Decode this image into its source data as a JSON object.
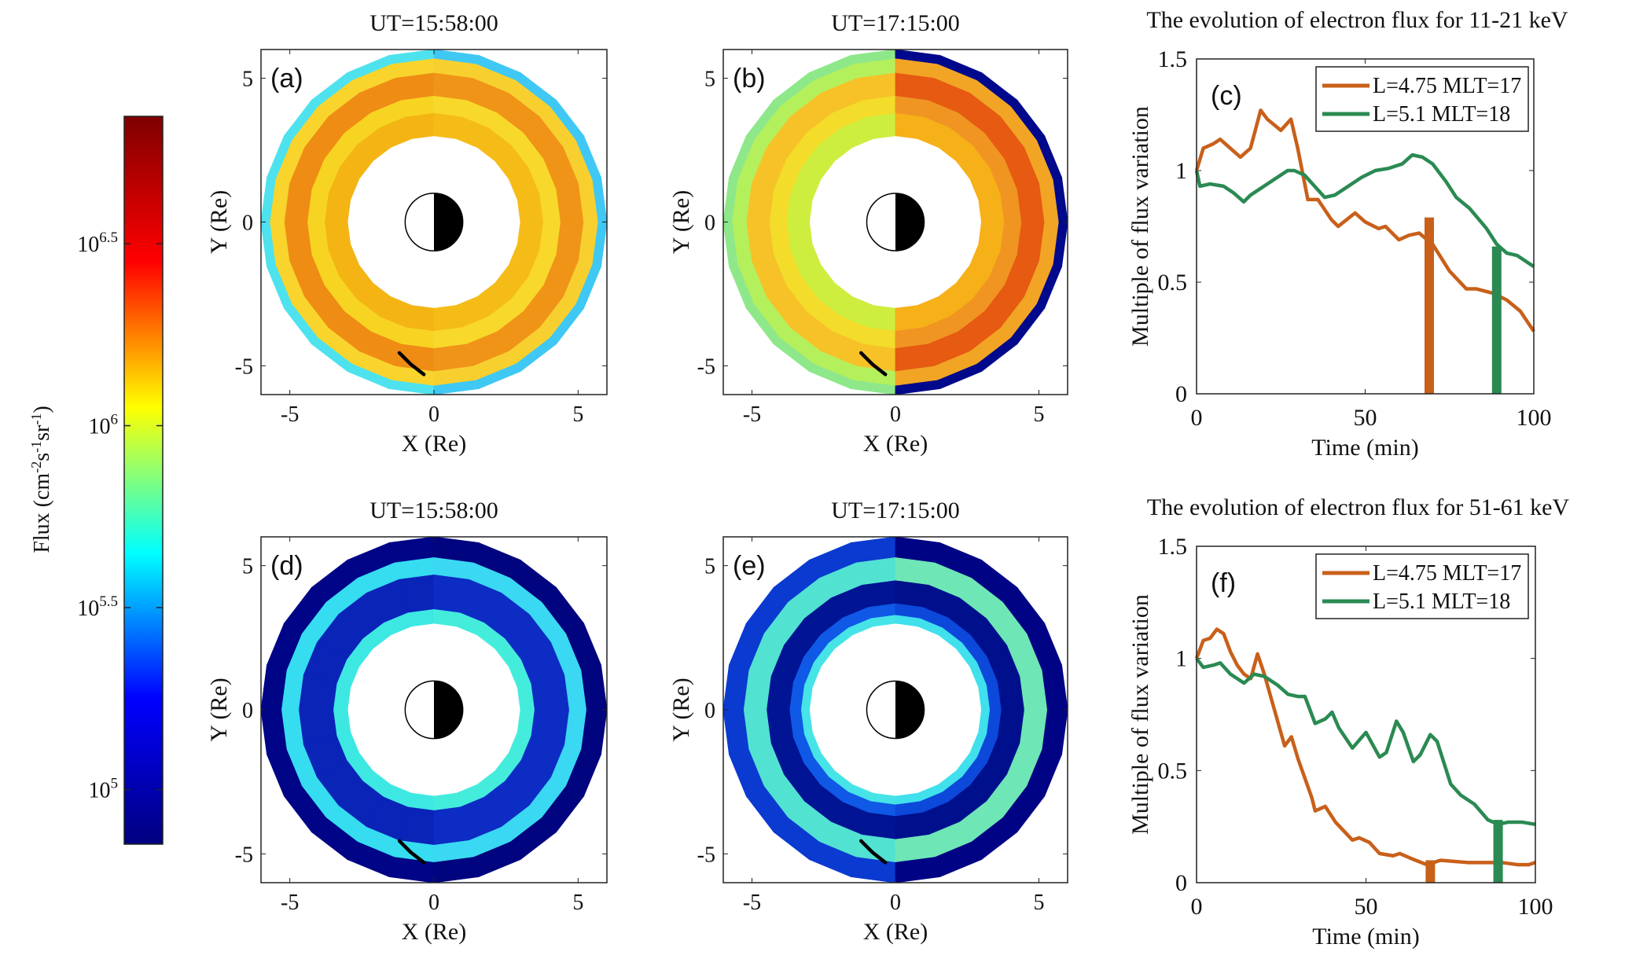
{
  "chart_data": [
    {
      "id": "a",
      "type": "heatmap",
      "panel_label": "(a)",
      "title": "UT=15:58:00",
      "xlabel": "X (Re)",
      "ylabel": "Y (Re)",
      "xlim": [
        -6,
        6
      ],
      "ylim": [
        -6,
        6
      ],
      "xticks": [
        "-5",
        "0",
        "5"
      ],
      "yticks": [
        "-5",
        "0",
        "5"
      ],
      "bands_west": [
        {
          "r": [
            3.0,
            3.8
          ],
          "color": "#f3b414"
        },
        {
          "r": [
            3.8,
            4.4
          ],
          "color": "#f7d422"
        },
        {
          "r": [
            4.4,
            5.2
          ],
          "color": "#ef8c14"
        },
        {
          "r": [
            5.2,
            5.7
          ],
          "color": "#f8d42c"
        },
        {
          "r": [
            5.7,
            6.0
          ],
          "color": "#4ee2ee"
        }
      ],
      "bands_east": [
        {
          "r": [
            3.0,
            3.8
          ],
          "color": "#f5bc18"
        },
        {
          "r": [
            3.8,
            4.4
          ],
          "color": "#f8d82a"
        },
        {
          "r": [
            4.4,
            5.2
          ],
          "color": "#f09418"
        },
        {
          "r": [
            5.2,
            5.7
          ],
          "color": "#f7d030"
        },
        {
          "r": [
            5.7,
            6.0
          ],
          "color": "#3fc8f4"
        }
      ],
      "track": [
        [
          -1.2,
          -4.55
        ],
        [
          -0.8,
          -4.95
        ],
        [
          -0.35,
          -5.3
        ]
      ]
    },
    {
      "id": "b",
      "type": "heatmap",
      "panel_label": "(b)",
      "title": "UT=17:15:00",
      "xlabel": "X (Re)",
      "ylabel": "Y (Re)",
      "xlim": [
        -6,
        6
      ],
      "ylim": [
        -6,
        6
      ],
      "xticks": [
        "-5",
        "0",
        "5"
      ],
      "yticks": [
        "-5",
        "0",
        "5"
      ],
      "bands_west": [
        {
          "r": [
            3.0,
            3.8
          ],
          "color": "#cdee3e"
        },
        {
          "r": [
            3.8,
            4.4
          ],
          "color": "#f4dc2a"
        },
        {
          "r": [
            4.4,
            5.2
          ],
          "color": "#f6c228"
        },
        {
          "r": [
            5.2,
            5.7
          ],
          "color": "#b4f05c"
        },
        {
          "r": [
            5.7,
            6.0
          ],
          "color": "#8ee88a"
        }
      ],
      "bands_east": [
        {
          "r": [
            3.0,
            3.8
          ],
          "color": "#f6b018"
        },
        {
          "r": [
            3.8,
            4.4
          ],
          "color": "#f09422"
        },
        {
          "r": [
            4.4,
            5.2
          ],
          "color": "#e65a12"
        },
        {
          "r": [
            5.2,
            5.7
          ],
          "color": "#f2a424"
        },
        {
          "r": [
            5.7,
            6.0
          ],
          "color": "#00088c"
        }
      ],
      "track": [
        [
          -1.2,
          -4.55
        ],
        [
          -0.8,
          -4.95
        ],
        [
          -0.35,
          -5.3
        ]
      ]
    },
    {
      "id": "c",
      "type": "line",
      "panel_label": "(c)",
      "title": "The evolution of electron flux for 11-21 keV",
      "xlabel": "Time (min)",
      "ylabel": "Multiple of flux variation",
      "xlim": [
        0,
        100
      ],
      "ylim": [
        0,
        1.5
      ],
      "xticks": [
        "0",
        "50",
        "100"
      ],
      "yticks": [
        "0",
        "0.5",
        "1",
        "1.5"
      ],
      "legend": "top-right",
      "series": [
        {
          "name": "L=4.75 MLT=17",
          "color": "#c8601a",
          "x": [
            0,
            2,
            5,
            7,
            10,
            13,
            16,
            19,
            21,
            25,
            28,
            30,
            33,
            36,
            40,
            42,
            47,
            50,
            54,
            56,
            60,
            63,
            66,
            70,
            75,
            80,
            83,
            88,
            92,
            96,
            100
          ],
          "y": [
            1.0,
            1.1,
            1.12,
            1.14,
            1.1,
            1.06,
            1.1,
            1.27,
            1.23,
            1.18,
            1.23,
            1.1,
            0.87,
            0.87,
            0.78,
            0.75,
            0.81,
            0.77,
            0.74,
            0.75,
            0.69,
            0.71,
            0.72,
            0.67,
            0.55,
            0.47,
            0.47,
            0.45,
            0.42,
            0.37,
            0.28
          ],
          "marker_bar": {
            "x": 69,
            "height": 0.79
          }
        },
        {
          "name": "L=5.1 MLT=18",
          "color": "#2a8a52",
          "x": [
            0,
            1,
            4,
            8,
            11,
            14,
            16,
            20,
            24,
            27,
            29,
            32,
            35,
            38,
            41,
            45,
            49,
            53,
            57,
            61,
            64,
            67,
            70,
            74,
            77,
            81,
            86,
            89,
            92,
            95,
            98,
            100
          ],
          "y": [
            1.0,
            0.93,
            0.94,
            0.93,
            0.9,
            0.86,
            0.89,
            0.93,
            0.97,
            1.0,
            1.0,
            0.98,
            0.93,
            0.88,
            0.89,
            0.93,
            0.97,
            1.0,
            1.01,
            1.03,
            1.07,
            1.06,
            1.03,
            0.95,
            0.88,
            0.83,
            0.74,
            0.67,
            0.63,
            0.62,
            0.59,
            0.57
          ],
          "marker_bar": {
            "x": 89,
            "height": 0.66
          }
        }
      ]
    },
    {
      "id": "d",
      "type": "heatmap",
      "panel_label": "(d)",
      "title": "UT=15:58:00",
      "xlabel": "X (Re)",
      "ylabel": "Y (Re)",
      "xlim": [
        -6,
        6
      ],
      "ylim": [
        -6,
        6
      ],
      "xticks": [
        "-5",
        "0",
        "5"
      ],
      "yticks": [
        "-5",
        "0",
        "5"
      ],
      "bands_west": [
        {
          "r": [
            3.0,
            3.5
          ],
          "color": "#3ee8e2"
        },
        {
          "r": [
            3.5,
            4.7
          ],
          "color": "#0a24b8"
        },
        {
          "r": [
            4.7,
            5.3
          ],
          "color": "#36dcf0"
        },
        {
          "r": [
            5.3,
            6.0
          ],
          "color": "#000486"
        }
      ],
      "bands_east": [
        {
          "r": [
            3.0,
            3.5
          ],
          "color": "#44ecdc"
        },
        {
          "r": [
            3.5,
            4.7
          ],
          "color": "#0c2cc4"
        },
        {
          "r": [
            4.7,
            5.3
          ],
          "color": "#3ad8f2"
        },
        {
          "r": [
            5.3,
            6.0
          ],
          "color": "#00047e"
        }
      ],
      "track": [
        [
          -1.2,
          -4.55
        ],
        [
          -0.8,
          -4.95
        ],
        [
          -0.35,
          -5.3
        ]
      ]
    },
    {
      "id": "e",
      "type": "heatmap",
      "panel_label": "(e)",
      "title": "UT=17:15:00",
      "xlabel": "X (Re)",
      "ylabel": "Y (Re)",
      "xlim": [
        -6,
        6
      ],
      "ylim": [
        -6,
        6
      ],
      "xticks": [
        "-5",
        "0",
        "5"
      ],
      "yticks": [
        "-5",
        "0",
        "5"
      ],
      "bands_west": [
        {
          "r": [
            3.0,
            3.3
          ],
          "color": "#46e4e6"
        },
        {
          "r": [
            3.3,
            3.7
          ],
          "color": "#1058e6"
        },
        {
          "r": [
            3.7,
            4.5
          ],
          "color": "#001494"
        },
        {
          "r": [
            4.5,
            5.3
          ],
          "color": "#52e2d2"
        },
        {
          "r": [
            5.3,
            6.0
          ],
          "color": "#0a3ad0"
        }
      ],
      "bands_east": [
        {
          "r": [
            3.0,
            3.3
          ],
          "color": "#40e0ec"
        },
        {
          "r": [
            3.3,
            3.7
          ],
          "color": "#0c48da"
        },
        {
          "r": [
            3.7,
            4.5
          ],
          "color": "#00108c"
        },
        {
          "r": [
            4.5,
            5.3
          ],
          "color": "#6ee6b6"
        },
        {
          "r": [
            5.3,
            6.0
          ],
          "color": "#000484"
        }
      ],
      "track": [
        [
          -1.2,
          -4.55
        ],
        [
          -0.8,
          -4.95
        ],
        [
          -0.35,
          -5.3
        ]
      ]
    },
    {
      "id": "f",
      "type": "line",
      "panel_label": "(f)",
      "title": "The evolution of electron flux for 51-61 keV",
      "xlabel": "Time (min)",
      "ylabel": "Multiple of flux variation",
      "xlim": [
        0,
        100
      ],
      "ylim": [
        0,
        1.5
      ],
      "xticks": [
        "0",
        "50",
        "100"
      ],
      "yticks": [
        "0",
        "0.5",
        "1",
        "1.5"
      ],
      "legend": "top-right",
      "series": [
        {
          "name": "L=4.75 MLT=17",
          "color": "#c8601a",
          "x": [
            0,
            2,
            4,
            6,
            8,
            10,
            12,
            14,
            16,
            18,
            20,
            23,
            26,
            28,
            30,
            34,
            35,
            38,
            41,
            46,
            48,
            51,
            54,
            58,
            60,
            63,
            68,
            72,
            80,
            90,
            95,
            98,
            100
          ],
          "y": [
            1.0,
            1.08,
            1.09,
            1.13,
            1.11,
            1.03,
            0.97,
            0.93,
            0.91,
            1.02,
            0.93,
            0.77,
            0.61,
            0.65,
            0.55,
            0.38,
            0.32,
            0.34,
            0.27,
            0.19,
            0.2,
            0.18,
            0.13,
            0.12,
            0.13,
            0.11,
            0.08,
            0.1,
            0.09,
            0.09,
            0.08,
            0.08,
            0.09
          ],
          "marker_bar": {
            "x": 69,
            "height": 0.1
          }
        },
        {
          "name": "L=5.1 MLT=18",
          "color": "#2a8a52",
          "x": [
            0,
            2,
            5,
            7,
            10,
            14,
            17,
            20,
            24,
            27,
            30,
            32,
            35,
            38,
            40,
            42,
            46,
            50,
            54,
            56,
            59,
            61,
            64,
            66,
            69,
            71,
            75,
            78,
            82,
            86,
            89,
            92,
            96,
            100
          ],
          "y": [
            1.0,
            0.96,
            0.97,
            0.98,
            0.93,
            0.89,
            0.93,
            0.92,
            0.88,
            0.84,
            0.83,
            0.83,
            0.71,
            0.73,
            0.76,
            0.69,
            0.6,
            0.67,
            0.56,
            0.58,
            0.72,
            0.67,
            0.54,
            0.57,
            0.66,
            0.63,
            0.44,
            0.39,
            0.35,
            0.28,
            0.26,
            0.27,
            0.27,
            0.26
          ],
          "marker_bar": {
            "x": 89,
            "height": 0.28
          }
        }
      ]
    }
  ],
  "colorbar": {
    "label_prefix": "Flux (cm",
    "label_sup1": "-2",
    "label_mid1": "s",
    "label_sup2": "-1",
    "label_mid2": "sr",
    "label_sup3": "-1",
    "label_suffix": ")",
    "log10_range": [
      4.85,
      6.85
    ],
    "colors": [
      "#00007f",
      "#0000ff",
      "#00ffff",
      "#ffff00",
      "#ff0000",
      "#7f0000"
    ],
    "ticks": [
      {
        "base": "10",
        "exp": "6.5",
        "value": 6.5
      },
      {
        "base": "10",
        "exp": "6",
        "value": 6.0
      },
      {
        "base": "10",
        "exp": "5.5",
        "value": 5.5
      },
      {
        "base": "10",
        "exp": "5",
        "value": 5.0
      }
    ]
  }
}
